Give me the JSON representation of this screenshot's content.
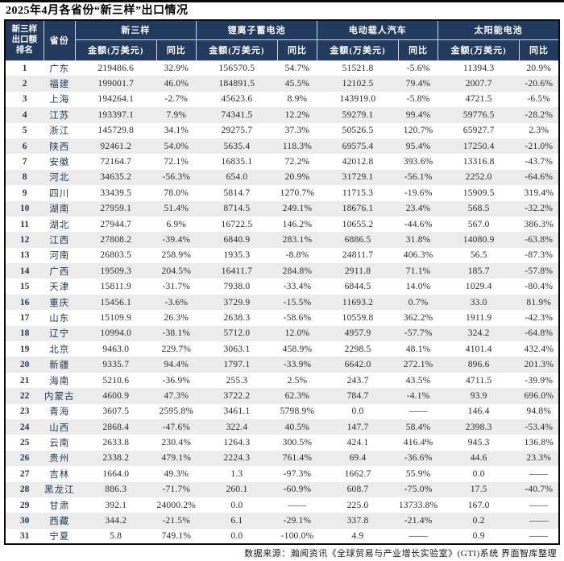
{
  "page": {
    "title": "2025年4月各省份“新三样”出口情况",
    "footer": "数据来源：瀚闻资讯《全球贸易与产业增长实验室》(GTI)系统  界面智库整理"
  },
  "colors": {
    "header_bg": "#223a5e",
    "header_text": "#ffffff",
    "stripe": "#ececec",
    "navy_text": "#1f3858",
    "value_text": "#2b2b2b",
    "border_dark": "#0a0a0a"
  },
  "table": {
    "rank_header_lines": [
      "新三样",
      "出口额",
      "排名"
    ],
    "province_header": "省份",
    "groups": [
      "新三样",
      "锂离子蓄电池",
      "电动载人汽车",
      "太阳能电池"
    ],
    "amount_header": "金额(万美元)",
    "yoy_header": "同比"
  },
  "chart_data": {
    "type": "table",
    "title": "2025年4月各省份“新三样”出口情况",
    "columns": [
      "新三样出口额排名",
      "省份",
      "新三样-金额(万美元)",
      "新三样-同比",
      "锂离子蓄电池-金额(万美元)",
      "锂离子蓄电池-同比",
      "电动载人汽车-金额(万美元)",
      "电动载人汽车-同比",
      "太阳能电池-金额(万美元)",
      "太阳能电池-同比"
    ],
    "rows": [
      [
        "1",
        "广东",
        "219486.6",
        "32.9%",
        "156570.5",
        "54.7%",
        "51521.8",
        "-5.6%",
        "11394.3",
        "20.9%"
      ],
      [
        "2",
        "福建",
        "199001.7",
        "46.0%",
        "184891.5",
        "45.5%",
        "12102.5",
        "79.4%",
        "2007.7",
        "-20.6%"
      ],
      [
        "3",
        "上海",
        "194264.1",
        "-2.7%",
        "45623.6",
        "8.9%",
        "143919.0",
        "-5.8%",
        "4721.5",
        "-6.5%"
      ],
      [
        "4",
        "江苏",
        "193397.1",
        "7.9%",
        "74341.5",
        "12.2%",
        "59279.1",
        "99.4%",
        "59776.5",
        "-28.2%"
      ],
      [
        "5",
        "浙江",
        "145729.8",
        "34.1%",
        "29275.7",
        "37.3%",
        "50526.5",
        "120.7%",
        "65927.7",
        "2.3%"
      ],
      [
        "6",
        "陕西",
        "92461.2",
        "54.0%",
        "5635.4",
        "118.3%",
        "69575.4",
        "95.4%",
        "17250.4",
        "-21.0%"
      ],
      [
        "7",
        "安徽",
        "72164.7",
        "72.1%",
        "16835.1",
        "72.2%",
        "42012.8",
        "393.6%",
        "13316.8",
        "-43.7%"
      ],
      [
        "8",
        "河北",
        "34635.2",
        "-56.3%",
        "654.0",
        "20.9%",
        "31729.1",
        "-56.1%",
        "2252.0",
        "-64.6%"
      ],
      [
        "9",
        "四川",
        "33439.5",
        "78.0%",
        "5814.7",
        "1270.7%",
        "11715.3",
        "-19.6%",
        "15909.5",
        "319.4%"
      ],
      [
        "10",
        "湖南",
        "27959.1",
        "51.4%",
        "8714.5",
        "249.1%",
        "18676.1",
        "23.4%",
        "568.5",
        "-32.2%"
      ],
      [
        "11",
        "湖北",
        "27944.7",
        "6.9%",
        "16722.5",
        "146.2%",
        "10655.2",
        "-44.6%",
        "567.0",
        "386.3%"
      ],
      [
        "12",
        "江西",
        "27808.2",
        "-39.4%",
        "6840.9",
        "283.1%",
        "6886.5",
        "31.8%",
        "14080.9",
        "-63.8%"
      ],
      [
        "13",
        "河南",
        "26803.5",
        "258.9%",
        "1935.3",
        "-8.8%",
        "24811.7",
        "406.3%",
        "56.5",
        "-87.3%"
      ],
      [
        "14",
        "广西",
        "19509.3",
        "204.5%",
        "16411.7",
        "284.8%",
        "2911.8",
        "71.1%",
        "185.7",
        "-57.8%"
      ],
      [
        "15",
        "天津",
        "15811.9",
        "-31.7%",
        "7938.0",
        "-33.4%",
        "6844.5",
        "14.0%",
        "1029.4",
        "-80.4%"
      ],
      [
        "16",
        "重庆",
        "15456.1",
        "-3.6%",
        "3729.9",
        "-15.5%",
        "11693.2",
        "0.7%",
        "33.0",
        "81.9%"
      ],
      [
        "17",
        "山东",
        "15109.9",
        "26.3%",
        "2638.3",
        "-58.6%",
        "10559.8",
        "362.2%",
        "1911.9",
        "-42.3%"
      ],
      [
        "18",
        "辽宁",
        "10994.0",
        "-38.1%",
        "5712.0",
        "12.0%",
        "4957.9",
        "-57.7%",
        "324.2",
        "-64.8%"
      ],
      [
        "19",
        "北京",
        "9463.0",
        "229.7%",
        "3063.1",
        "458.9%",
        "2298.5",
        "48.1%",
        "4101.4",
        "432.4%"
      ],
      [
        "20",
        "新疆",
        "9335.7",
        "94.4%",
        "1797.1",
        "-33.9%",
        "6642.0",
        "272.1%",
        "896.6",
        "201.3%"
      ],
      [
        "21",
        "海南",
        "5210.6",
        "-36.9%",
        "255.3",
        "2.5%",
        "243.7",
        "43.5%",
        "4711.5",
        "-39.9%"
      ],
      [
        "22",
        "内蒙古",
        "4600.9",
        "47.3%",
        "3722.2",
        "62.3%",
        "784.7",
        "-4.1%",
        "93.9",
        "696.0%"
      ],
      [
        "23",
        "青海",
        "3607.5",
        "2595.8%",
        "3461.1",
        "5798.9%",
        "0.0",
        "——",
        "146.4",
        "94.8%"
      ],
      [
        "24",
        "山西",
        "2868.4",
        "-47.6%",
        "322.4",
        "40.5%",
        "147.7",
        "58.4%",
        "2398.3",
        "-53.4%"
      ],
      [
        "25",
        "云南",
        "2633.8",
        "230.4%",
        "1264.3",
        "300.5%",
        "424.1",
        "416.4%",
        "945.3",
        "136.8%"
      ],
      [
        "26",
        "贵州",
        "2338.2",
        "479.1%",
        "2224.3",
        "761.4%",
        "69.4",
        "-36.6%",
        "44.6",
        "23.3%"
      ],
      [
        "27",
        "吉林",
        "1664.0",
        "49.3%",
        "1.3",
        "-97.3%",
        "1662.7",
        "55.9%",
        "0.0",
        "——"
      ],
      [
        "28",
        "黑龙江",
        "886.3",
        "-71.7%",
        "260.1",
        "-60.9%",
        "608.7",
        "-75.0%",
        "17.5",
        "-40.7%"
      ],
      [
        "29",
        "甘肃",
        "392.1",
        "24000.2%",
        "0.0",
        "——",
        "225.0",
        "13733.8%",
        "167.0",
        "——"
      ],
      [
        "30",
        "西藏",
        "344.2",
        "-21.5%",
        "6.1",
        "-29.1%",
        "337.8",
        "-21.4%",
        "0.2",
        "——"
      ],
      [
        "31",
        "宁夏",
        "5.8",
        "749.1%",
        "0.0",
        "-100.0%",
        "4.9",
        "——",
        "0.9",
        "——"
      ]
    ]
  }
}
